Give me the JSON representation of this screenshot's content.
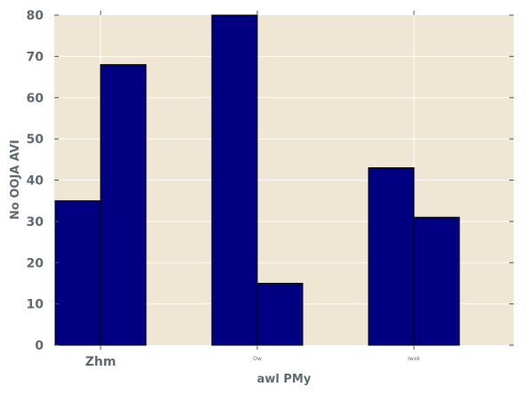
{
  "chart_data": {
    "type": "bar",
    "title": "",
    "xlabel": "awl PMy",
    "ylabel": "No OOJA AVI",
    "categories": [
      "Zhm",
      "Ow",
      "Iwxk"
    ],
    "series": [
      {
        "values": [
          35,
          80,
          43
        ]
      },
      {
        "values": [
          68,
          15,
          31
        ]
      }
    ],
    "ylim": [
      0,
      80
    ],
    "yticks": [
      "0",
      "10",
      "20",
      "30",
      "40",
      "50",
      "60",
      "70",
      "80"
    ],
    "grid": true,
    "colors": {
      "plot_background": "#efe6d3",
      "bar_fill": "#000080",
      "bar_edge": "#000000",
      "grid": "#ffffff",
      "text": "#5f6b73"
    }
  }
}
